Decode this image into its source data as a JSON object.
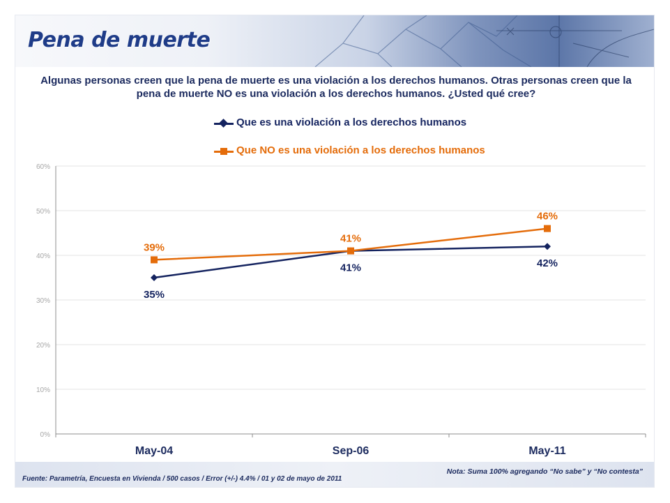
{
  "header": {
    "title": "Pena de muerte"
  },
  "question": "Algunas personas creen que la pena de muerte es una violación a los derechos humanos. Otras personas creen que la pena de muerte NO es una violación a los derechos humanos. ¿Usted qué cree?",
  "colors": {
    "series1": "#14235f",
    "series2": "#e46c0a",
    "title": "#1f3c88",
    "text": "#1b2a5e"
  },
  "chart_data": {
    "type": "line",
    "x": [
      "May-04",
      "Sep-06",
      "May-11"
    ],
    "ylim": [
      0,
      60
    ],
    "yticks": [
      "0%",
      "10%",
      "20%",
      "30%",
      "40%",
      "50%",
      "60%"
    ],
    "grid": true,
    "legend_position": "top",
    "series": [
      {
        "name": "Que es una violación a los derechos humanos",
        "values": [
          35,
          41,
          42
        ],
        "labels": [
          "35%",
          "41%",
          "42%"
        ],
        "marker": "diamond"
      },
      {
        "name": "Que NO es una violación a los derechos humanos",
        "values": [
          39,
          41,
          46
        ],
        "labels": [
          "39%",
          "41%",
          "46%"
        ],
        "marker": "square"
      }
    ]
  },
  "footer": {
    "source": "Fuente: Parametría, Encuesta en Vivienda / 500 casos / Error (+/-) 4.4% / 01 y 02 de mayo de 2011",
    "note": "Nota: Suma 100% agregando “No sabe” y “No contesta”"
  }
}
